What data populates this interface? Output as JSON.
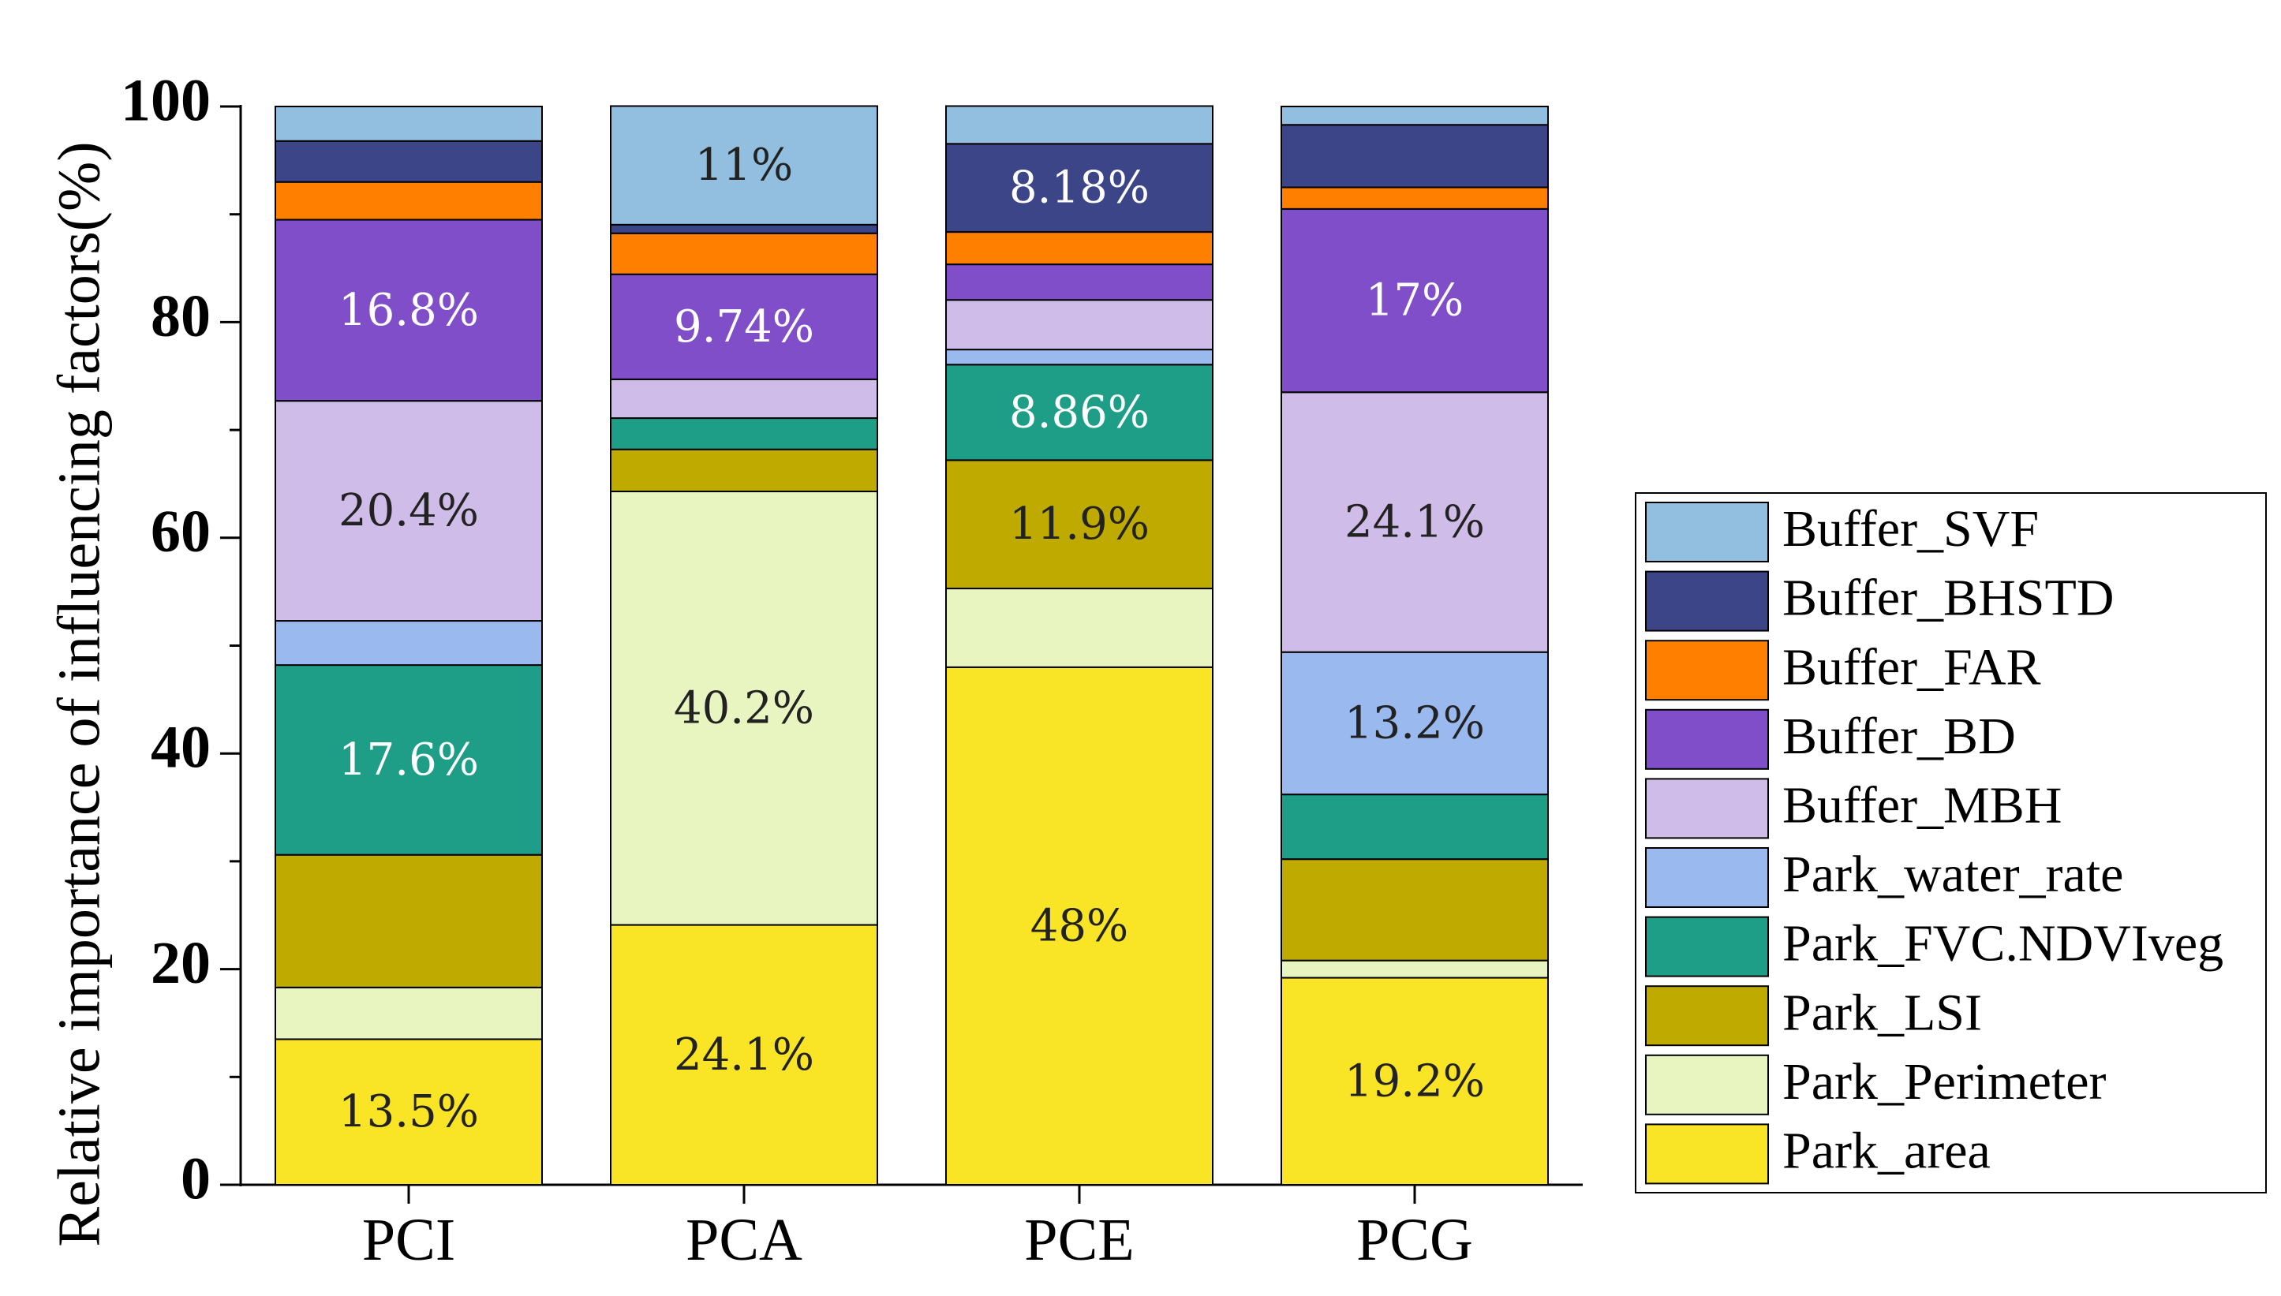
{
  "chart_data": {
    "type": "bar",
    "stacked": true,
    "percent": true,
    "title": "",
    "xlabel": "",
    "ylabel": "Relative importance of influencing factors(%)",
    "ylim": [
      0,
      100
    ],
    "yticks": [
      "0",
      "20",
      "40",
      "60",
      "80",
      "100"
    ],
    "categories": [
      "PCI",
      "PCA",
      "PCE",
      "PCG"
    ],
    "legend_position": "right",
    "series": [
      {
        "name": "Park_area",
        "color": "#f9e425",
        "values": [
          13.5,
          24.1,
          48.0,
          19.2
        ],
        "labels": [
          "13.5%",
          "24.1%",
          "48%",
          "19.2%"
        ],
        "label_color": "#222222"
      },
      {
        "name": "Park_Perimeter",
        "color": "#e8f5c0",
        "values": [
          4.8,
          40.2,
          7.3,
          1.6
        ],
        "labels": [
          "",
          "40.2%",
          "",
          ""
        ],
        "label_color": "#222222"
      },
      {
        "name": "Park_LSI",
        "color": "#bfab00",
        "values": [
          12.3,
          3.9,
          11.9,
          9.4
        ],
        "labels": [
          "",
          "",
          "11.9%",
          ""
        ],
        "label_color": "#222222"
      },
      {
        "name": "Park_FVC.NDVIveg",
        "color": "#1e9e86",
        "values": [
          17.6,
          2.9,
          8.86,
          6.0
        ],
        "labels": [
          "17.6%",
          "",
          "8.86%",
          ""
        ],
        "label_color": "#ffffff"
      },
      {
        "name": "Park_water_rate",
        "color": "#99b9ef",
        "values": [
          4.1,
          0.0,
          1.4,
          13.2
        ],
        "labels": [
          "",
          "",
          "",
          "13.2%"
        ],
        "label_color": "#222222"
      },
      {
        "name": "Buffer_MBH",
        "color": "#d0bce8",
        "values": [
          20.4,
          3.6,
          4.6,
          24.1
        ],
        "labels": [
          "20.4%",
          "",
          "",
          "24.1%"
        ],
        "label_color": "#222222"
      },
      {
        "name": "Buffer_BD",
        "color": "#7f4ec8",
        "values": [
          16.8,
          9.74,
          3.3,
          17.0
        ],
        "labels": [
          "16.8%",
          "9.74%",
          "",
          "17%"
        ],
        "label_color": "#ffffff"
      },
      {
        "name": "Buffer_FAR",
        "color": "#ff8000",
        "values": [
          3.5,
          3.8,
          3.0,
          2.0
        ],
        "labels": [
          "",
          "",
          "",
          ""
        ],
        "label_color": "#ffffff"
      },
      {
        "name": "Buffer_BHSTD",
        "color": "#3b4588",
        "values": [
          3.8,
          0.8,
          8.18,
          5.8
        ],
        "labels": [
          "",
          "",
          "8.18%",
          ""
        ],
        "label_color": "#ffffff"
      },
      {
        "name": "Buffer_SVF",
        "color": "#92bfdf",
        "values": [
          3.2,
          11.0,
          3.5,
          1.7
        ],
        "labels": [
          "",
          "11%",
          "",
          ""
        ],
        "label_color": "#222222"
      }
    ]
  }
}
